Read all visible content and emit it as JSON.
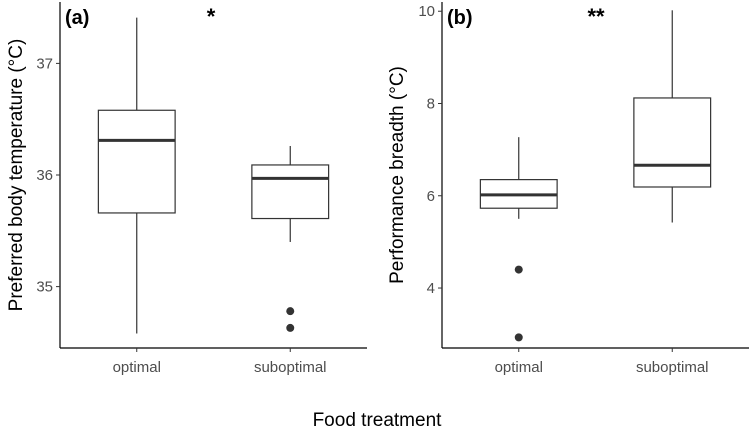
{
  "x_axis_title": "Food treatment",
  "chart_data": [
    {
      "type": "boxplot",
      "panel_label": "(a)",
      "significance": "*",
      "ylabel": "Preferred body temperature (°C)",
      "ylim": [
        34.45,
        37.55
      ],
      "yticks": [
        35,
        36,
        37
      ],
      "categories": [
        "optimal",
        "suboptimal"
      ],
      "boxes": [
        {
          "category": "optimal",
          "whisker_low": 34.58,
          "q1": 35.66,
          "median": 36.31,
          "q3": 36.58,
          "whisker_high": 37.41,
          "outliers": []
        },
        {
          "category": "suboptimal",
          "whisker_low": 35.4,
          "q1": 35.61,
          "median": 35.97,
          "q3": 36.09,
          "whisker_high": 36.26,
          "outliers": [
            34.78,
            34.63
          ]
        }
      ],
      "grid": false
    },
    {
      "type": "boxplot",
      "panel_label": "(b)",
      "significance": "**",
      "ylabel": "Performance breadth (°C)",
      "ylim": [
        2.7,
        10.2
      ],
      "yticks": [
        4,
        6,
        8,
        10
      ],
      "categories": [
        "optimal",
        "suboptimal"
      ],
      "boxes": [
        {
          "category": "optimal",
          "whisker_low": 5.5,
          "q1": 5.73,
          "median": 6.02,
          "q3": 6.35,
          "whisker_high": 7.27,
          "outliers": [
            4.4,
            2.93
          ]
        },
        {
          "category": "suboptimal",
          "whisker_low": 5.42,
          "q1": 6.19,
          "median": 6.66,
          "q3": 8.12,
          "whisker_high": 10.02,
          "outliers": []
        }
      ],
      "grid": false
    }
  ]
}
